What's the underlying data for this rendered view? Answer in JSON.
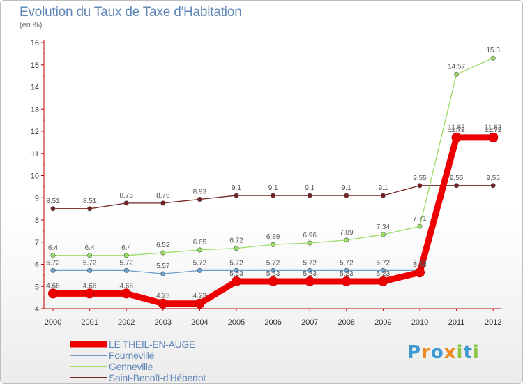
{
  "chart_data": {
    "type": "line",
    "title": "Evolution du Taux de Taxe d'Habitation",
    "subtitle": "(en %)",
    "categories": [
      "2000",
      "2001",
      "2002",
      "2003",
      "2004",
      "2005",
      "2006",
      "2007",
      "2008",
      "2009",
      "2010",
      "2011",
      "2012"
    ],
    "ylim": [
      4,
      16
    ],
    "yticks": [
      4,
      5,
      6,
      7,
      8,
      9,
      10,
      11,
      12,
      13,
      14,
      15,
      16
    ],
    "grid": false,
    "legend_position": "bottom-left",
    "series": [
      {
        "name": "LE THEIL-EN-AUGE",
        "color": "#ee0000",
        "values": [
          4.68,
          4.68,
          4.68,
          4.23,
          4.23,
          5.23,
          5.23,
          5.23,
          5.23,
          5.23,
          5.63,
          11.72,
          11.72
        ],
        "labels": [
          "4.68",
          "4.68",
          "4.68",
          "4.23",
          "4.23",
          "5.23",
          "5.23",
          "5.23",
          "5.23",
          "5.23",
          "5.63",
          "11.72",
          "11.72"
        ]
      },
      {
        "name": "Fourneville",
        "color": "#6a9fcf",
        "values": [
          5.72,
          5.72,
          5.72,
          5.57,
          5.72,
          5.72,
          5.72,
          5.72,
          5.72,
          5.72,
          5.72,
          11.82,
          11.82
        ],
        "labels": [
          "5.72",
          "5.72",
          "5.72",
          "5.57",
          "5.72",
          "5.72",
          "5.72",
          "5.72",
          "5.72",
          "5.72",
          "5.72",
          "11.82",
          "11.82"
        ]
      },
      {
        "name": "Genneville",
        "color": "#99dd66",
        "values": [
          6.4,
          6.4,
          6.4,
          6.52,
          6.65,
          6.72,
          6.89,
          6.96,
          7.09,
          7.34,
          7.71,
          14.57,
          15.3
        ],
        "labels": [
          "6.4",
          "6.4",
          "6.4",
          "6.52",
          "6.65",
          "6.72",
          "6.89",
          "6.96",
          "7.09",
          "7.34",
          "7.71",
          "14.57",
          "15.3"
        ]
      },
      {
        "name": "Saint-Benoît-d'Hébertot",
        "color": "#772222",
        "values": [
          8.51,
          8.51,
          8.76,
          8.76,
          8.93,
          9.1,
          9.1,
          9.1,
          9.1,
          9.1,
          9.55,
          9.55,
          9.55
        ],
        "labels": [
          "8.51",
          "8.51",
          "8.76",
          "8.76",
          "8.93",
          "9.1",
          "9.1",
          "9.1",
          "9.1",
          "9.1",
          "9.55",
          "9.55",
          "9.55"
        ]
      }
    ]
  },
  "brand": {
    "letters": [
      "P",
      "r",
      "o",
      "x",
      "i",
      "t",
      "i"
    ],
    "colors": [
      "#3d9ad1",
      "#f08a1c",
      "#3d9ad1",
      "#f08a1c",
      "#8cc63f",
      "#3d9ad1",
      "#8cc63f"
    ]
  }
}
